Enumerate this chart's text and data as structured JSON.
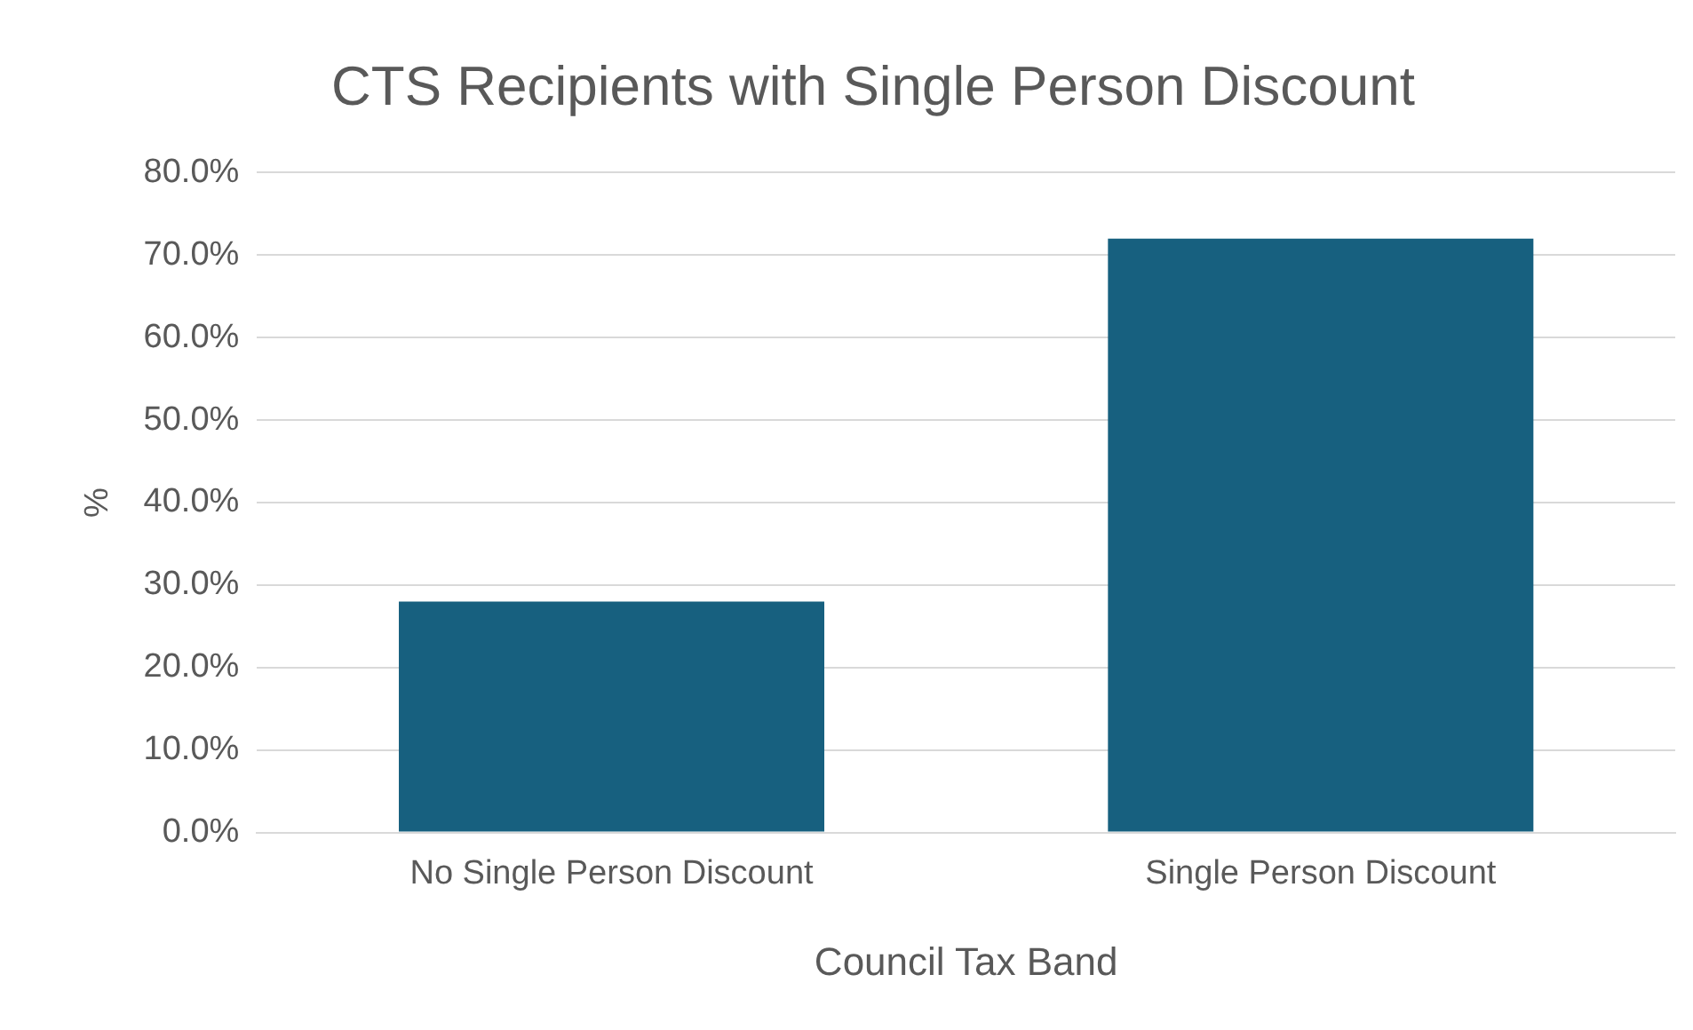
{
  "chart_data": {
    "type": "bar",
    "title": "CTS Recipients with Single Person Discount",
    "xlabel": "Council Tax Band",
    "ylabel": "%",
    "categories": [
      "No Single Person Discount",
      "Single Person Discount"
    ],
    "values": [
      28,
      72
    ],
    "color": "#17607f",
    "ylim": [
      0,
      80
    ],
    "yticks": [
      {
        "value": 0,
        "label": "0.0%"
      },
      {
        "value": 10,
        "label": "10.0%"
      },
      {
        "value": 20,
        "label": "20.0%"
      },
      {
        "value": 30,
        "label": "30.0%"
      },
      {
        "value": 40,
        "label": "40.0%"
      },
      {
        "value": 50,
        "label": "50.0%"
      },
      {
        "value": 60,
        "label": "60.0%"
      },
      {
        "value": 70,
        "label": "70.0%"
      },
      {
        "value": 80,
        "label": "80.0%"
      }
    ],
    "grid": "y",
    "legend": false
  }
}
